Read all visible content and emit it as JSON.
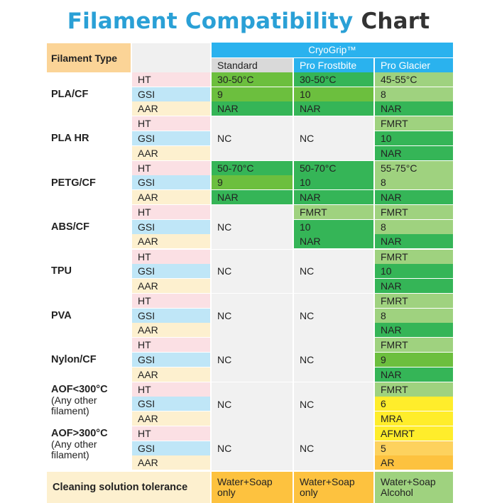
{
  "title": {
    "part1": "Filament Compatibility",
    "part2": "Chart"
  },
  "header": {
    "filament_type": "Filament Type",
    "brand": "CryoGrip™",
    "columns": [
      "Standard",
      "Pro Frostbite",
      "Pro Glacier"
    ]
  },
  "labels": [
    "HT",
    "GSI",
    "AAR"
  ],
  "rows": [
    {
      "name": "PLA/CF",
      "sub": "",
      "std": [
        "30-50°C",
        "9",
        "NAR"
      ],
      "pf": [
        "30-50°C",
        "10",
        "NAR"
      ],
      "pg": [
        "45-55°C",
        "8",
        "NAR"
      ]
    },
    {
      "name": "PLA HR",
      "sub": "",
      "std": "NC",
      "pf": "NC",
      "pg": [
        "FMRT",
        "10",
        "NAR"
      ]
    },
    {
      "name": "PETG/CF",
      "sub": "",
      "std": [
        "50-70°C",
        "9",
        "NAR"
      ],
      "pf": [
        "50-70°C",
        "10",
        "NAR"
      ],
      "pg": [
        "55-75°C",
        "8",
        "NAR"
      ]
    },
    {
      "name": "ABS/CF",
      "sub": "",
      "std": "NC",
      "pf": [
        "FMRT",
        "10",
        "NAR"
      ],
      "pg": [
        "FMRT",
        "8",
        "NAR"
      ]
    },
    {
      "name": "TPU",
      "sub": "",
      "std": "NC",
      "pf": "NC",
      "pg": [
        "FMRT",
        "10",
        "NAR"
      ]
    },
    {
      "name": "PVA",
      "sub": "",
      "std": "NC",
      "pf": "NC",
      "pg": [
        "FMRT",
        "8",
        "NAR"
      ]
    },
    {
      "name": "Nylon/CF",
      "sub": "",
      "std": "NC",
      "pf": "NC",
      "pg": [
        "FMRT",
        "9",
        "NAR"
      ]
    },
    {
      "name": "AOF<300°C",
      "sub": "(Any other filament)",
      "std": "NC",
      "pf": "NC",
      "pg": [
        "FMRT",
        "6",
        "MRA"
      ]
    },
    {
      "name": "AOF>300°C",
      "sub": "(Any other filament)",
      "std": "NC",
      "pf": "NC",
      "pg": [
        "AFMRT",
        "5",
        "AR"
      ]
    }
  ],
  "cleaning": {
    "label": "Cleaning solution tolerance",
    "std": "Water+Soap only",
    "pf": "Water+Soap only",
    "pg": "Water+Soap Alcohol"
  },
  "colors": {
    "title_blue": "#2aa0d6",
    "header_blue": "#2ab2ee",
    "green_dark": "#35b557",
    "green_olive": "#6cbf3e",
    "green_light": "#9fd27f",
    "yellow": "#ffed2b",
    "orange": "#fdc23f"
  }
}
